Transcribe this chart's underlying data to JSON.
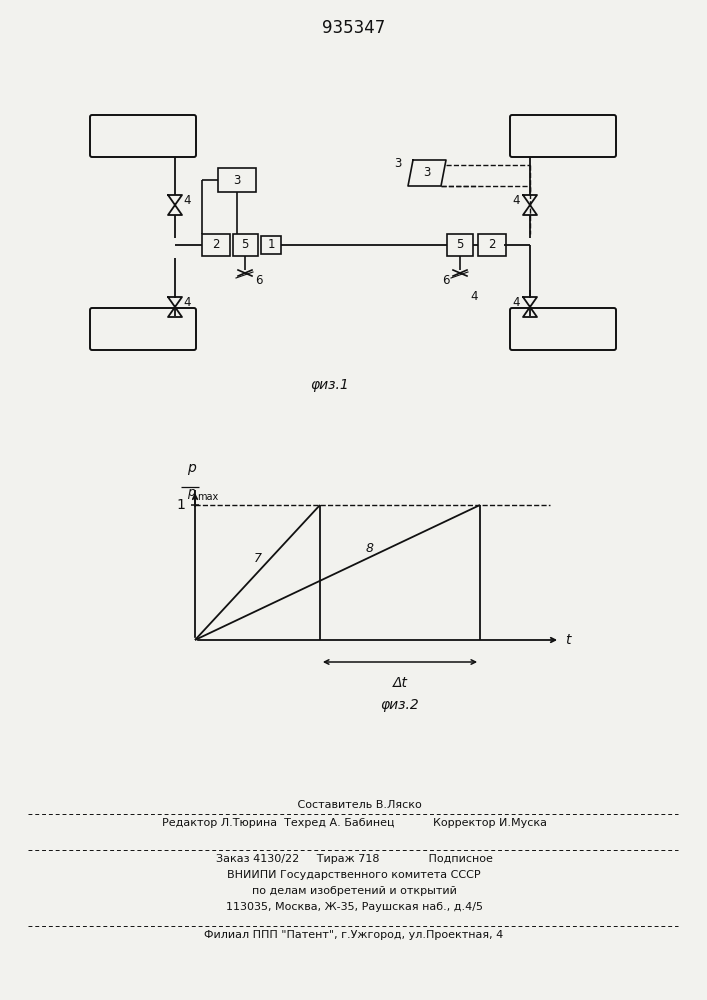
{
  "title_number": "935347",
  "fig1_label": "φиз.1",
  "fig2_label": "φиз.2",
  "x_axis_label": "t",
  "delta_t_label": "Δt",
  "line7_label": "7",
  "line8_label": "8",
  "footer_line1": "   Составитель В.Ляско",
  "footer_line2": "Редактор Л.Тюрина  Техред А. Бабинец           Корректор И.Муска",
  "footer_line3": "Заказ 4130/22     Тираж 718              Подписное",
  "footer_line4": "ВНИИПИ Государственного комитета СССР",
  "footer_line5": "по делам изобретений и открытий",
  "footer_line6": "113035, Москва, Ж-35, Раушская наб., д.4/5",
  "footer_line7": "Филиал ППП \"Патент\", г.Ужгород, ул.Проектная, 4",
  "bg_color": "#f2f2ee",
  "line_color": "#111111"
}
